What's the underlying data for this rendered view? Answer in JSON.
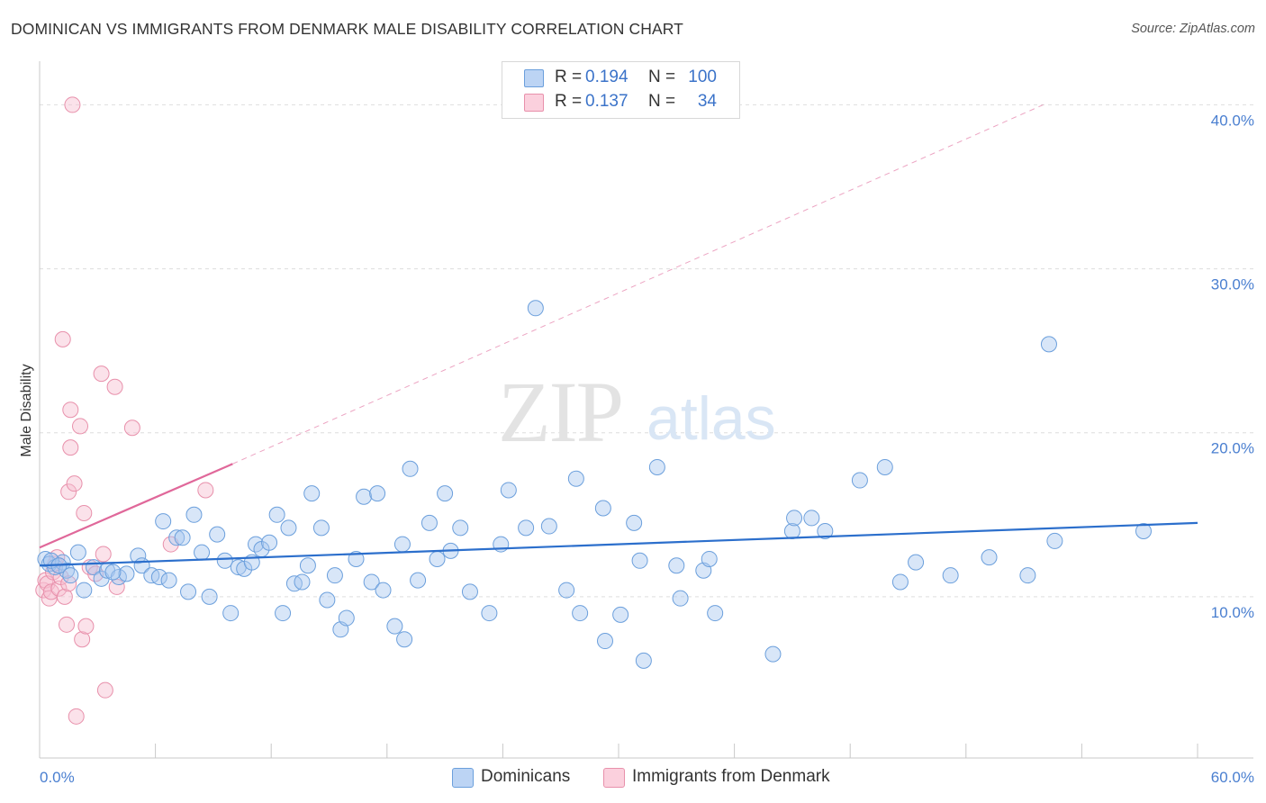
{
  "title": "DOMINICAN VS IMMIGRANTS FROM DENMARK MALE DISABILITY CORRELATION CHART",
  "source": "Source: ZipAtlas.com",
  "watermark": {
    "zip": "ZIP",
    "atlas": "atlas"
  },
  "colors": {
    "blue_fill": "#a9c8f0",
    "blue_stroke": "#6b9fdc",
    "blue_line": "#2c6fcc",
    "pink_fill": "#f6bfd0",
    "pink_stroke": "#e890ab",
    "pink_line": "#e0689a",
    "tick_label": "#4a7fd0",
    "grid": "#dddddd"
  },
  "legend": {
    "items": [
      {
        "r_label": "R =",
        "r_value": "0.194",
        "n_label": "N =",
        "n_value": "100"
      },
      {
        "r_label": "R =",
        "r_value": "0.137",
        "n_label": "N =",
        "n_value": "34"
      }
    ]
  },
  "bottom_legend": {
    "series1": "Dominicans",
    "series2": "Immigrants from Denmark"
  },
  "chart_data": {
    "type": "scatter",
    "title": "DOMINICAN VS IMMIGRANTS FROM DENMARK MALE DISABILITY CORRELATION CHART",
    "xlabel": "",
    "ylabel": "Male Disability",
    "xlim": [
      0,
      60
    ],
    "ylim": [
      0,
      42
    ],
    "x_tick_labels": [
      "0.0%",
      "60.0%"
    ],
    "y_ticks": [
      10,
      20,
      30,
      40
    ],
    "y_tick_labels": [
      "10.0%",
      "20.0%",
      "30.0%",
      "40.0%"
    ],
    "grid": true,
    "legend_position": "top-center",
    "series": [
      {
        "name": "Dominicans",
        "r": 0.194,
        "n": 100,
        "trend": {
          "x": [
            0,
            60
          ],
          "y": [
            11.9,
            14.5
          ]
        },
        "points": [
          [
            0.3,
            12.3
          ],
          [
            0.5,
            12.0
          ],
          [
            0.8,
            11.8
          ],
          [
            1.2,
            12.1
          ],
          [
            1.4,
            11.6
          ],
          [
            1.6,
            11.3
          ],
          [
            2.0,
            12.7
          ],
          [
            2.3,
            10.4
          ],
          [
            2.8,
            11.8
          ],
          [
            3.2,
            11.1
          ],
          [
            3.5,
            11.6
          ],
          [
            4.1,
            11.2
          ],
          [
            4.5,
            11.4
          ],
          [
            5.1,
            12.5
          ],
          [
            5.3,
            11.9
          ],
          [
            5.8,
            11.3
          ],
          [
            6.2,
            11.2
          ],
          [
            6.4,
            14.6
          ],
          [
            6.7,
            11.0
          ],
          [
            7.1,
            13.6
          ],
          [
            7.4,
            13.6
          ],
          [
            7.7,
            10.3
          ],
          [
            8.0,
            15.0
          ],
          [
            8.4,
            12.7
          ],
          [
            8.8,
            10.0
          ],
          [
            9.2,
            13.8
          ],
          [
            9.6,
            12.2
          ],
          [
            9.9,
            9.0
          ],
          [
            10.3,
            11.8
          ],
          [
            10.6,
            11.7
          ],
          [
            11.0,
            12.1
          ],
          [
            11.2,
            13.2
          ],
          [
            11.5,
            12.9
          ],
          [
            11.9,
            13.3
          ],
          [
            12.3,
            15.0
          ],
          [
            12.6,
            9.0
          ],
          [
            12.9,
            14.2
          ],
          [
            13.2,
            10.8
          ],
          [
            13.6,
            10.9
          ],
          [
            13.9,
            11.9
          ],
          [
            14.1,
            16.3
          ],
          [
            14.6,
            14.2
          ],
          [
            14.9,
            9.8
          ],
          [
            15.3,
            11.3
          ],
          [
            15.6,
            8.0
          ],
          [
            15.9,
            8.7
          ],
          [
            16.4,
            12.3
          ],
          [
            16.8,
            16.1
          ],
          [
            17.2,
            10.9
          ],
          [
            17.5,
            16.3
          ],
          [
            17.8,
            10.4
          ],
          [
            18.4,
            8.2
          ],
          [
            18.8,
            13.2
          ],
          [
            18.9,
            7.4
          ],
          [
            19.2,
            17.8
          ],
          [
            19.6,
            11.0
          ],
          [
            20.2,
            14.5
          ],
          [
            20.6,
            12.3
          ],
          [
            21.0,
            16.3
          ],
          [
            21.3,
            12.8
          ],
          [
            21.8,
            14.2
          ],
          [
            22.3,
            10.3
          ],
          [
            23.3,
            9.0
          ],
          [
            23.9,
            13.2
          ],
          [
            24.3,
            16.5
          ],
          [
            25.2,
            14.2
          ],
          [
            25.7,
            27.6
          ],
          [
            26.4,
            14.3
          ],
          [
            27.3,
            10.4
          ],
          [
            27.8,
            17.2
          ],
          [
            28.0,
            9.0
          ],
          [
            29.2,
            15.4
          ],
          [
            29.3,
            7.3
          ],
          [
            30.1,
            8.9
          ],
          [
            30.8,
            14.5
          ],
          [
            31.1,
            12.2
          ],
          [
            31.3,
            6.1
          ],
          [
            32.0,
            17.9
          ],
          [
            33.0,
            11.9
          ],
          [
            33.2,
            9.9
          ],
          [
            34.4,
            11.6
          ],
          [
            34.7,
            12.3
          ],
          [
            35.0,
            9.0
          ],
          [
            38.0,
            6.5
          ],
          [
            39.0,
            14.0
          ],
          [
            39.1,
            14.8
          ],
          [
            40.0,
            14.8
          ],
          [
            40.7,
            14.0
          ],
          [
            42.5,
            17.1
          ],
          [
            43.8,
            17.9
          ],
          [
            44.6,
            10.9
          ],
          [
            45.4,
            12.1
          ],
          [
            47.2,
            11.3
          ],
          [
            49.2,
            12.4
          ],
          [
            51.2,
            11.3
          ],
          [
            52.3,
            25.4
          ],
          [
            52.6,
            13.4
          ],
          [
            57.2,
            14.0
          ],
          [
            0.6,
            12.2
          ],
          [
            1.0,
            11.9
          ],
          [
            3.8,
            11.5
          ]
        ]
      },
      {
        "name": "Immigrants from Denmark",
        "r": 0.137,
        "n": 34,
        "trend": {
          "x": [
            0,
            10
          ],
          "y": [
            13.0,
            18.1
          ]
        },
        "trend_extended": {
          "x": [
            10,
            52
          ],
          "y": [
            18.1,
            40.0
          ]
        },
        "points": [
          [
            0.2,
            10.4
          ],
          [
            0.3,
            11.0
          ],
          [
            0.4,
            10.8
          ],
          [
            0.5,
            9.9
          ],
          [
            0.6,
            10.3
          ],
          [
            0.7,
            11.5
          ],
          [
            0.8,
            12.0
          ],
          [
            0.9,
            12.4
          ],
          [
            1.0,
            10.5
          ],
          [
            1.1,
            11.2
          ],
          [
            1.3,
            10.0
          ],
          [
            1.4,
            8.3
          ],
          [
            1.5,
            10.8
          ],
          [
            1.6,
            21.4
          ],
          [
            1.5,
            16.4
          ],
          [
            1.6,
            19.1
          ],
          [
            1.7,
            40.0
          ],
          [
            1.8,
            16.9
          ],
          [
            1.9,
            2.7
          ],
          [
            2.1,
            20.4
          ],
          [
            2.2,
            7.4
          ],
          [
            2.3,
            15.1
          ],
          [
            2.4,
            8.2
          ],
          [
            2.6,
            11.8
          ],
          [
            2.9,
            11.4
          ],
          [
            3.2,
            23.6
          ],
          [
            3.3,
            12.6
          ],
          [
            3.4,
            4.3
          ],
          [
            3.9,
            22.8
          ],
          [
            4.0,
            10.6
          ],
          [
            4.8,
            20.3
          ],
          [
            6.8,
            13.2
          ],
          [
            8.6,
            16.5
          ],
          [
            1.2,
            25.7
          ]
        ]
      }
    ]
  }
}
